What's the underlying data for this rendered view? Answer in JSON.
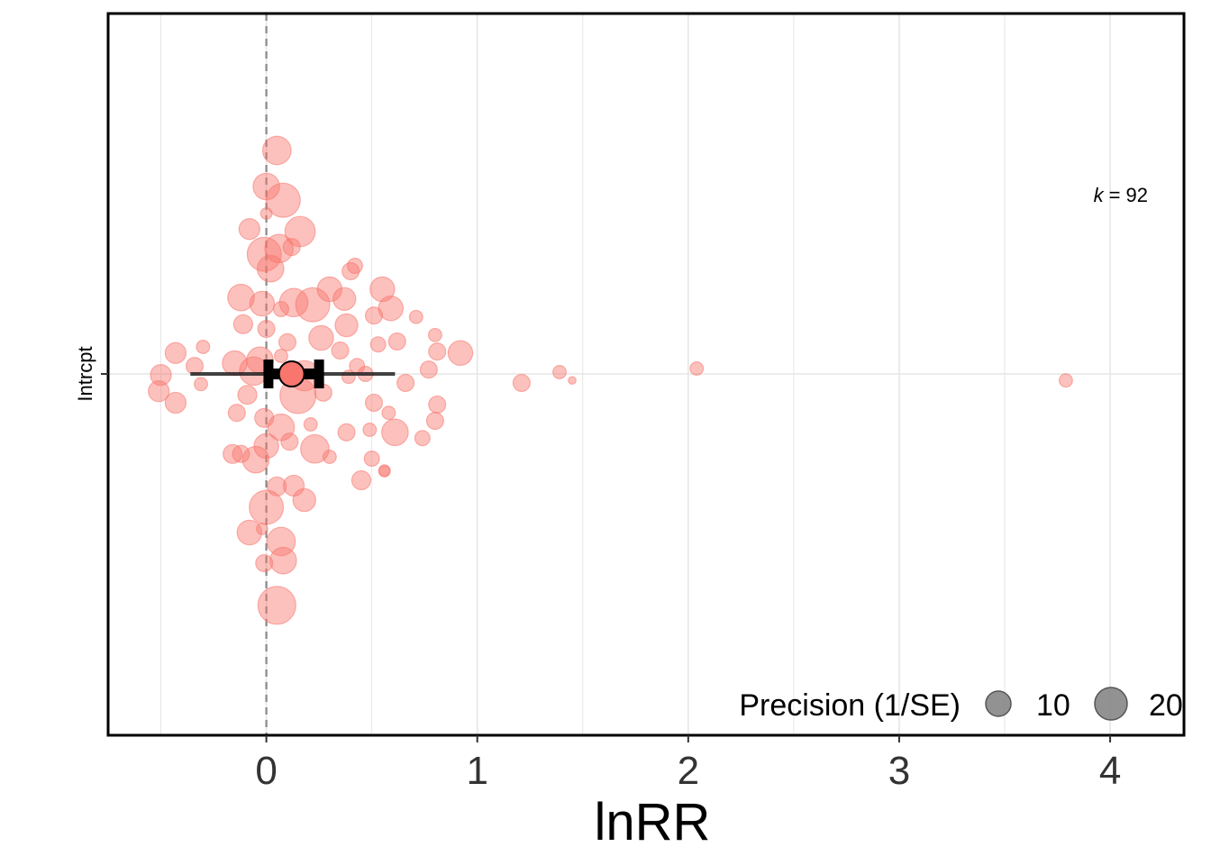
{
  "chart_data": {
    "type": "scatter",
    "subtype": "orchard-plot",
    "xlabel": "lnRR",
    "xlim": [
      -0.75,
      4.35
    ],
    "x_ticks": [
      "0",
      "1",
      "2",
      "3",
      "4"
    ],
    "y_category": "Intrcpt",
    "annotation": {
      "k_label": "k",
      "k_eq": "= 92"
    },
    "legend": {
      "title": "Precision (1/SE)",
      "entries": [
        {
          "label": "10",
          "precision": 10
        },
        {
          "label": "20",
          "precision": 20
        }
      ],
      "position": "bottom-right"
    },
    "estimate": {
      "mean": 0.12,
      "ci": [
        0.01,
        0.25
      ],
      "pi": [
        -0.36,
        0.61
      ]
    },
    "colors": {
      "points": "#f8766d",
      "estimate_fill": "#f8766d",
      "ci": "#000000",
      "pi": "#222222",
      "zero_line": "#888888",
      "grid": "#e6e6e6",
      "legend_point": "#7f7f7f"
    },
    "grid": true,
    "zero_line": true,
    "points": [
      {
        "x": 0.05,
        "jitter": 0.62,
        "precision": 15
      },
      {
        "x": 0.0,
        "jitter": 0.52,
        "precision": 14
      },
      {
        "x": 0.08,
        "jitter": 0.482,
        "precision": 18
      },
      {
        "x": 0.0,
        "jitter": 0.445,
        "precision": 6
      },
      {
        "x": 0.16,
        "jitter": 0.395,
        "precision": 16
      },
      {
        "x": -0.08,
        "jitter": 0.402,
        "precision": 11
      },
      {
        "x": 0.12,
        "jitter": 0.352,
        "precision": 9
      },
      {
        "x": 0.06,
        "jitter": 0.348,
        "precision": 15
      },
      {
        "x": -0.01,
        "jitter": 0.332,
        "precision": 18
      },
      {
        "x": 0.02,
        "jitter": 0.292,
        "precision": 14
      },
      {
        "x": 0.4,
        "jitter": 0.285,
        "precision": 9
      },
      {
        "x": -0.12,
        "jitter": 0.212,
        "precision": 14
      },
      {
        "x": 0.3,
        "jitter": 0.235,
        "precision": 13
      },
      {
        "x": 0.55,
        "jitter": 0.235,
        "precision": 13
      },
      {
        "x": 0.37,
        "jitter": 0.208,
        "precision": 12
      },
      {
        "x": -0.02,
        "jitter": 0.195,
        "precision": 13
      },
      {
        "x": 0.13,
        "jitter": 0.198,
        "precision": 15
      },
      {
        "x": 0.22,
        "jitter": 0.192,
        "precision": 18
      },
      {
        "x": 0.07,
        "jitter": 0.18,
        "precision": 8
      },
      {
        "x": 0.59,
        "jitter": 0.182,
        "precision": 13
      },
      {
        "x": 0.51,
        "jitter": 0.162,
        "precision": 9
      },
      {
        "x": 0.71,
        "jitter": 0.158,
        "precision": 7
      },
      {
        "x": -0.11,
        "jitter": 0.138,
        "precision": 10
      },
      {
        "x": 0.0,
        "jitter": 0.125,
        "precision": 9
      },
      {
        "x": 0.38,
        "jitter": 0.135,
        "precision": 12
      },
      {
        "x": 0.26,
        "jitter": 0.1,
        "precision": 13
      },
      {
        "x": 0.8,
        "jitter": 0.108,
        "precision": 7
      },
      {
        "x": 0.1,
        "jitter": 0.088,
        "precision": 9
      },
      {
        "x": 0.62,
        "jitter": 0.09,
        "precision": 9
      },
      {
        "x": 0.53,
        "jitter": 0.082,
        "precision": 8
      },
      {
        "x": -0.3,
        "jitter": 0.075,
        "precision": 7
      },
      {
        "x": 0.35,
        "jitter": 0.065,
        "precision": 9
      },
      {
        "x": 0.81,
        "jitter": 0.062,
        "precision": 9
      },
      {
        "x": 0.92,
        "jitter": 0.058,
        "precision": 13
      },
      {
        "x": -0.43,
        "jitter": 0.058,
        "precision": 11
      },
      {
        "x": -0.15,
        "jitter": 0.03,
        "precision": 13
      },
      {
        "x": -0.03,
        "jitter": 0.038,
        "precision": 14
      },
      {
        "x": 0.43,
        "jitter": 0.022,
        "precision": 8
      },
      {
        "x": -0.34,
        "jitter": 0.022,
        "precision": 9
      },
      {
        "x": 0.07,
        "jitter": 0.05,
        "precision": 7
      },
      {
        "x": -0.06,
        "jitter": 0.008,
        "precision": 15
      },
      {
        "x": 0.77,
        "jitter": 0.012,
        "precision": 9
      },
      {
        "x": 0.47,
        "jitter": 0.0,
        "precision": 8
      },
      {
        "x": 1.39,
        "jitter": 0.005,
        "precision": 7
      },
      {
        "x": 2.04,
        "jitter": 0.015,
        "precision": 7
      },
      {
        "x": -0.5,
        "jitter": -0.003,
        "precision": 11
      },
      {
        "x": 0.18,
        "jitter": -0.005,
        "precision": 16
      },
      {
        "x": 0.39,
        "jitter": -0.008,
        "precision": 7
      },
      {
        "x": 0.66,
        "jitter": -0.025,
        "precision": 9
      },
      {
        "x": 1.21,
        "jitter": -0.025,
        "precision": 9
      },
      {
        "x": 1.45,
        "jitter": -0.018,
        "precision": 4
      },
      {
        "x": 3.79,
        "jitter": -0.018,
        "precision": 7
      },
      {
        "x": -0.31,
        "jitter": -0.028,
        "precision": 7
      },
      {
        "x": -0.51,
        "jitter": -0.048,
        "precision": 11
      },
      {
        "x": 0.15,
        "jitter": -0.06,
        "precision": 19
      },
      {
        "x": -0.09,
        "jitter": -0.058,
        "precision": 10
      },
      {
        "x": 0.27,
        "jitter": -0.052,
        "precision": 9
      },
      {
        "x": -0.43,
        "jitter": -0.08,
        "precision": 11
      },
      {
        "x": 0.51,
        "jitter": -0.08,
        "precision": 9
      },
      {
        "x": 0.81,
        "jitter": -0.085,
        "precision": 9
      },
      {
        "x": -0.14,
        "jitter": -0.108,
        "precision": 9
      },
      {
        "x": -0.01,
        "jitter": -0.122,
        "precision": 10
      },
      {
        "x": 0.58,
        "jitter": -0.108,
        "precision": 7
      },
      {
        "x": 0.8,
        "jitter": -0.13,
        "precision": 9
      },
      {
        "x": 0.07,
        "jitter": -0.148,
        "precision": 14
      },
      {
        "x": 0.21,
        "jitter": -0.14,
        "precision": 7
      },
      {
        "x": 0.38,
        "jitter": -0.162,
        "precision": 9
      },
      {
        "x": 0.49,
        "jitter": -0.155,
        "precision": 7
      },
      {
        "x": 0.61,
        "jitter": -0.162,
        "precision": 14
      },
      {
        "x": 0.74,
        "jitter": -0.178,
        "precision": 8
      },
      {
        "x": 0.0,
        "jitter": -0.2,
        "precision": 13
      },
      {
        "x": 0.11,
        "jitter": -0.188,
        "precision": 9
      },
      {
        "x": 0.23,
        "jitter": -0.208,
        "precision": 15
      },
      {
        "x": -0.16,
        "jitter": -0.222,
        "precision": 10
      },
      {
        "x": -0.12,
        "jitter": -0.222,
        "precision": 9
      },
      {
        "x": 0.3,
        "jitter": -0.23,
        "precision": 7
      },
      {
        "x": -0.05,
        "jitter": -0.238,
        "precision": 14
      },
      {
        "x": 0.5,
        "jitter": -0.235,
        "precision": 8
      },
      {
        "x": 0.56,
        "jitter": -0.268,
        "precision": 6
      },
      {
        "x": 0.45,
        "jitter": -0.295,
        "precision": 10
      },
      {
        "x": 0.05,
        "jitter": -0.312,
        "precision": 10
      },
      {
        "x": 0.13,
        "jitter": -0.31,
        "precision": 11
      },
      {
        "x": 0.18,
        "jitter": -0.35,
        "precision": 12
      },
      {
        "x": 0.0,
        "jitter": -0.37,
        "precision": 18
      },
      {
        "x": -0.08,
        "jitter": -0.44,
        "precision": 13
      },
      {
        "x": -0.02,
        "jitter": -0.43,
        "precision": 6
      },
      {
        "x": 0.07,
        "jitter": -0.465,
        "precision": 15
      },
      {
        "x": -0.01,
        "jitter": -0.525,
        "precision": 9
      },
      {
        "x": 0.08,
        "jitter": -0.518,
        "precision": 14
      },
      {
        "x": 0.05,
        "jitter": -0.642,
        "precision": 20
      },
      {
        "x": 0.56,
        "jitter": -0.27,
        "precision": 6
      },
      {
        "x": 0.42,
        "jitter": 0.3,
        "precision": 8
      }
    ]
  }
}
